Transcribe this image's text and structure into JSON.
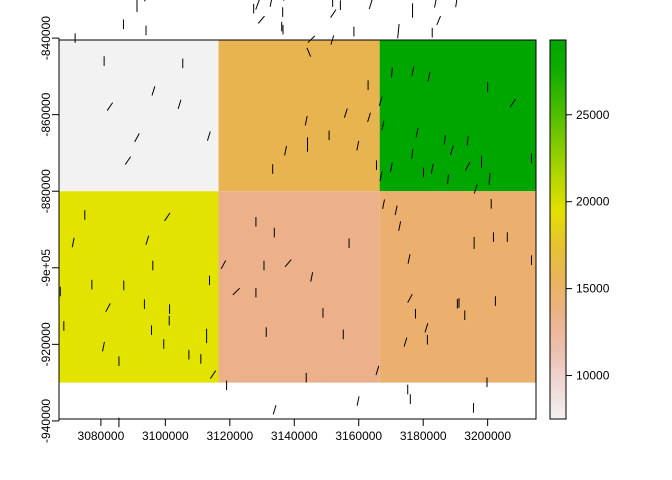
{
  "chart_data": {
    "type": "heatmap",
    "title": "",
    "xlabel": "",
    "ylabel": "",
    "xlim": [
      3067000,
      3215000
    ],
    "ylim": [
      -939500,
      -840500
    ],
    "x_ticks": [
      3080000,
      3100000,
      3120000,
      3140000,
      3160000,
      3180000,
      3200000
    ],
    "x_tick_labels": [
      "3080000",
      "3100000",
      "3120000",
      "3140000",
      "3160000",
      "3180000",
      "3200000"
    ],
    "y_ticks": [
      -840000,
      -860000,
      -880000,
      -900000,
      -920000,
      -940000
    ],
    "y_tick_labels": [
      "-840000",
      "-860000",
      "-880000",
      "-9e+05",
      "-920000",
      "-940000"
    ],
    "x_edges": [
      3066000,
      3116500,
      3166500,
      3216000
    ],
    "y_edges": [
      -830000,
      -880000,
      -930000
    ],
    "cells": [
      {
        "row": 0,
        "col": 0,
        "value": 8000,
        "color": "#f2f2f2"
      },
      {
        "row": 0,
        "col": 1,
        "value": 16300,
        "color": "#e8b44f"
      },
      {
        "row": 0,
        "col": 2,
        "value": 28500,
        "color": "#00a600"
      },
      {
        "row": 1,
        "col": 0,
        "value": 20200,
        "color": "#e3e300"
      },
      {
        "row": 1,
        "col": 1,
        "value": 12200,
        "color": "#ecb08b"
      },
      {
        "row": 1,
        "col": 2,
        "value": 14200,
        "color": "#ebb06e"
      }
    ],
    "segments": [
      [
        3071200,
        -828000,
        0.0,
        2.5
      ],
      [
        3087500,
        -828300,
        0.4,
        2.0
      ],
      [
        3098500,
        -828700,
        0.9,
        2.0
      ],
      [
        3110800,
        -827500,
        -0.3,
        2.0
      ],
      [
        3137000,
        -829000,
        0.2,
        2.0
      ],
      [
        3139700,
        -826500,
        0.0,
        2.5
      ],
      [
        3128800,
        -830800,
        0.35,
        3.0
      ],
      [
        3154300,
        -831400,
        0.0,
        2.0
      ],
      [
        3163700,
        -831200,
        0.3,
        2.0
      ],
      [
        3183800,
        -830800,
        0.2,
        2.0
      ],
      [
        3190300,
        -830700,
        0.15,
        2.0
      ],
      [
        3176700,
        -832800,
        0.0,
        3.0
      ],
      [
        3127400,
        -832300,
        0.0,
        2.0
      ],
      [
        3136400,
        -833200,
        0.0,
        2.0
      ],
      [
        3136100,
        -837000,
        0.0,
        2.0
      ],
      [
        3129800,
        -835200,
        0.7,
        2.0
      ],
      [
        3082000,
        -826800,
        0.0,
        2.5
      ],
      [
        3085600,
        -828000,
        0.0,
        2.0
      ],
      [
        3075800,
        -826700,
        0.5,
        2.0
      ],
      [
        3094000,
        -829200,
        0.3,
        2.0
      ],
      [
        3091200,
        -831600,
        0.0,
        2.5
      ],
      [
        3132800,
        -830600,
        0.2,
        2.0
      ],
      [
        3151900,
        -830600,
        0.0,
        2.0
      ],
      [
        3072000,
        -840000,
        0.0,
        2.0
      ],
      [
        3094000,
        -838000,
        0.0,
        2.0
      ],
      [
        3087000,
        -836400,
        0.0,
        2.0
      ],
      [
        3136500,
        -837800,
        0.0,
        2.0
      ],
      [
        3145300,
        -840300,
        0.8,
        2.0
      ],
      [
        3151800,
        -840500,
        0.3,
        2.0
      ],
      [
        3152100,
        -833600,
        0.6,
        2.0
      ],
      [
        3158500,
        -838300,
        0.0,
        2.0
      ],
      [
        3172300,
        -838200,
        0.1,
        3.0
      ],
      [
        3184800,
        -835400,
        0.4,
        2.0
      ],
      [
        3182800,
        -838600,
        0.0,
        2.0
      ],
      [
        3081000,
        -846000,
        0.0,
        2.0
      ],
      [
        3105400,
        -846600,
        0.0,
        2.0
      ],
      [
        3096300,
        -853800,
        0.3,
        2.0
      ],
      [
        3104400,
        -857300,
        0.3,
        2.0
      ],
      [
        3082800,
        -857900,
        0.6,
        2.0
      ],
      [
        3144500,
        -843700,
        -0.4,
        2.0
      ],
      [
        3170300,
        -849000,
        0.1,
        2.0
      ],
      [
        3176800,
        -848600,
        0.2,
        2.0
      ],
      [
        3181800,
        -850100,
        0.2,
        2.0
      ],
      [
        3166800,
        -856500,
        0.3,
        2.0
      ],
      [
        3162900,
        -852300,
        0.0,
        2.0
      ],
      [
        3200000,
        -852800,
        0.0,
        2.0
      ],
      [
        3207800,
        -857000,
        0.6,
        2.0
      ],
      [
        3170100,
        -873800,
        0.2,
        2.0
      ],
      [
        3178100,
        -864700,
        0.2,
        2.0
      ],
      [
        3186700,
        -866600,
        0.1,
        2.0
      ],
      [
        3193800,
        -866800,
        0.1,
        2.0
      ],
      [
        3188900,
        -869300,
        0.3,
        2.0
      ],
      [
        3163200,
        -860700,
        0.3,
        2.0
      ],
      [
        3167500,
        -862800,
        0.2,
        2.0
      ],
      [
        3156000,
        -859600,
        0.3,
        2.0
      ],
      [
        3143700,
        -861600,
        0.2,
        2.0
      ],
      [
        3144100,
        -867800,
        0.0,
        3.0
      ],
      [
        3150800,
        -865400,
        0.0,
        2.0
      ],
      [
        3159700,
        -868100,
        0.2,
        2.0
      ],
      [
        3137300,
        -869400,
        0.2,
        2.0
      ],
      [
        3133300,
        -874200,
        0.0,
        2.0
      ],
      [
        3166900,
        -876100,
        0.2,
        2.0
      ],
      [
        3165500,
        -873200,
        0.0,
        2.0
      ],
      [
        3113500,
        -865600,
        0.3,
        2.0
      ],
      [
        3091200,
        -866000,
        0.5,
        2.0
      ],
      [
        3088400,
        -872000,
        0.6,
        2.0
      ],
      [
        3180100,
        -875100,
        0.0,
        2.0
      ],
      [
        3187700,
        -876900,
        0.1,
        2.0
      ],
      [
        3193800,
        -873500,
        0.5,
        2.0
      ],
      [
        3196300,
        -879400,
        0.3,
        2.0
      ],
      [
        3213600,
        -871400,
        0.0,
        2.0
      ],
      [
        3198100,
        -872300,
        0.0,
        2.5
      ],
      [
        3200600,
        -876800,
        0.1,
        2.5
      ],
      [
        3176600,
        -870300,
        0.1,
        2.0
      ],
      [
        3182800,
        -874100,
        0.2,
        2.0
      ],
      [
        3201100,
        -883300,
        0.0,
        2.0
      ],
      [
        3167700,
        -883400,
        0.2,
        2.0
      ],
      [
        3171600,
        -885000,
        0.2,
        2.0
      ],
      [
        3100600,
        -886700,
        0.6,
        2.0
      ],
      [
        3075000,
        -886200,
        0.0,
        2.0
      ],
      [
        3071400,
        -893400,
        0.2,
        2.0
      ],
      [
        3094400,
        -892800,
        0.3,
        2.0
      ],
      [
        3096100,
        -899400,
        0.0,
        2.0
      ],
      [
        3118000,
        -899200,
        0.5,
        2.0
      ],
      [
        3128100,
        -888000,
        0.0,
        2.0
      ],
      [
        3133800,
        -890800,
        0.0,
        2.0
      ],
      [
        3130600,
        -899400,
        0.0,
        2.0
      ],
      [
        3138100,
        -898800,
        0.7,
        2.0
      ],
      [
        3157000,
        -893600,
        0.0,
        2.0
      ],
      [
        3172700,
        -889100,
        0.2,
        2.0
      ],
      [
        3175600,
        -897700,
        0.2,
        2.0
      ],
      [
        3195800,
        -893500,
        0.0,
        2.5
      ],
      [
        3201800,
        -892000,
        0.0,
        2.0
      ],
      [
        3206100,
        -892000,
        0.0,
        2.0
      ],
      [
        3213600,
        -898000,
        0.0,
        2.0
      ],
      [
        3077200,
        -904400,
        0.0,
        2.0
      ],
      [
        3087100,
        -904600,
        0.0,
        2.0
      ],
      [
        3093500,
        -909500,
        0.0,
        2.0
      ],
      [
        3082200,
        -910400,
        0.5,
        2.0
      ],
      [
        3068500,
        -915200,
        0.0,
        2.0
      ],
      [
        3067400,
        -906200,
        0.0,
        2.0
      ],
      [
        3113700,
        -903300,
        0.0,
        2.0
      ],
      [
        3128100,
        -906500,
        0.0,
        2.0
      ],
      [
        3122000,
        -906200,
        0.8,
        2.0
      ],
      [
        3148900,
        -911800,
        0.0,
        2.0
      ],
      [
        3145400,
        -902400,
        0.2,
        2.0
      ],
      [
        3131300,
        -916800,
        0.0,
        2.0
      ],
      [
        3155200,
        -917400,
        0.0,
        2.0
      ],
      [
        3175900,
        -908000,
        0.5,
        2.0
      ],
      [
        3191100,
        -909200,
        0.0,
        2.0
      ],
      [
        3177600,
        -912000,
        0.0,
        2.0
      ],
      [
        3181000,
        -915700,
        0.3,
        2.0
      ],
      [
        3181300,
        -918800,
        0.0,
        2.0
      ],
      [
        3190600,
        -909400,
        0.0,
        2.0
      ],
      [
        3202400,
        -908700,
        0.0,
        2.0
      ],
      [
        3192900,
        -912400,
        0.0,
        2.0
      ],
      [
        3174500,
        -919400,
        0.3,
        2.0
      ],
      [
        3101300,
        -910800,
        0.0,
        2.0
      ],
      [
        3101200,
        -913800,
        0.0,
        2.0
      ],
      [
        3095700,
        -916300,
        0.0,
        2.0
      ],
      [
        3099500,
        -919900,
        0.0,
        2.0
      ],
      [
        3107300,
        -922700,
        0.0,
        2.0
      ],
      [
        3111000,
        -923800,
        0.0,
        2.0
      ],
      [
        3112800,
        -917800,
        0.0,
        3.0
      ],
      [
        3085600,
        -924400,
        0.0,
        2.0
      ],
      [
        3080800,
        -920600,
        0.2,
        2.0
      ],
      [
        3114800,
        -927900,
        0.6,
        2.0
      ],
      [
        3119000,
        -930700,
        0.0,
        2.0
      ],
      [
        3133900,
        -937100,
        0.3,
        2.0
      ],
      [
        3143700,
        -928700,
        0.0,
        2.0
      ],
      [
        3165800,
        -926800,
        0.3,
        2.0
      ],
      [
        3159800,
        -934800,
        0.2,
        2.0
      ],
      [
        3175200,
        -931800,
        0.0,
        2.0
      ],
      [
        3176000,
        -934300,
        0.0,
        2.0
      ],
      [
        3195600,
        -936600,
        0.0,
        2.0
      ],
      [
        3199800,
        -929900,
        0.0,
        2.0
      ],
      [
        3085600,
        -940400,
        0.0,
        2.0
      ]
    ],
    "legend": {
      "position": "right",
      "min": 7500,
      "max": 29300,
      "ticks": [
        10000,
        15000,
        20000,
        25000
      ],
      "tick_labels": [
        "10000",
        "15000",
        "20000",
        "25000"
      ],
      "stops": [
        {
          "value": 7500,
          "color": "#f2f2f2"
        },
        {
          "value": 9500,
          "color": "#efd8d5"
        },
        {
          "value": 11500,
          "color": "#ecbfae"
        },
        {
          "value": 13500,
          "color": "#ebb388"
        },
        {
          "value": 15500,
          "color": "#e8b45c"
        },
        {
          "value": 17500,
          "color": "#e6c330"
        },
        {
          "value": 19500,
          "color": "#e3e000"
        },
        {
          "value": 21500,
          "color": "#b2d600"
        },
        {
          "value": 23500,
          "color": "#7bc900"
        },
        {
          "value": 25500,
          "color": "#43bb00"
        },
        {
          "value": 27500,
          "color": "#12ad00"
        },
        {
          "value": 29300,
          "color": "#00a600"
        }
      ]
    }
  }
}
